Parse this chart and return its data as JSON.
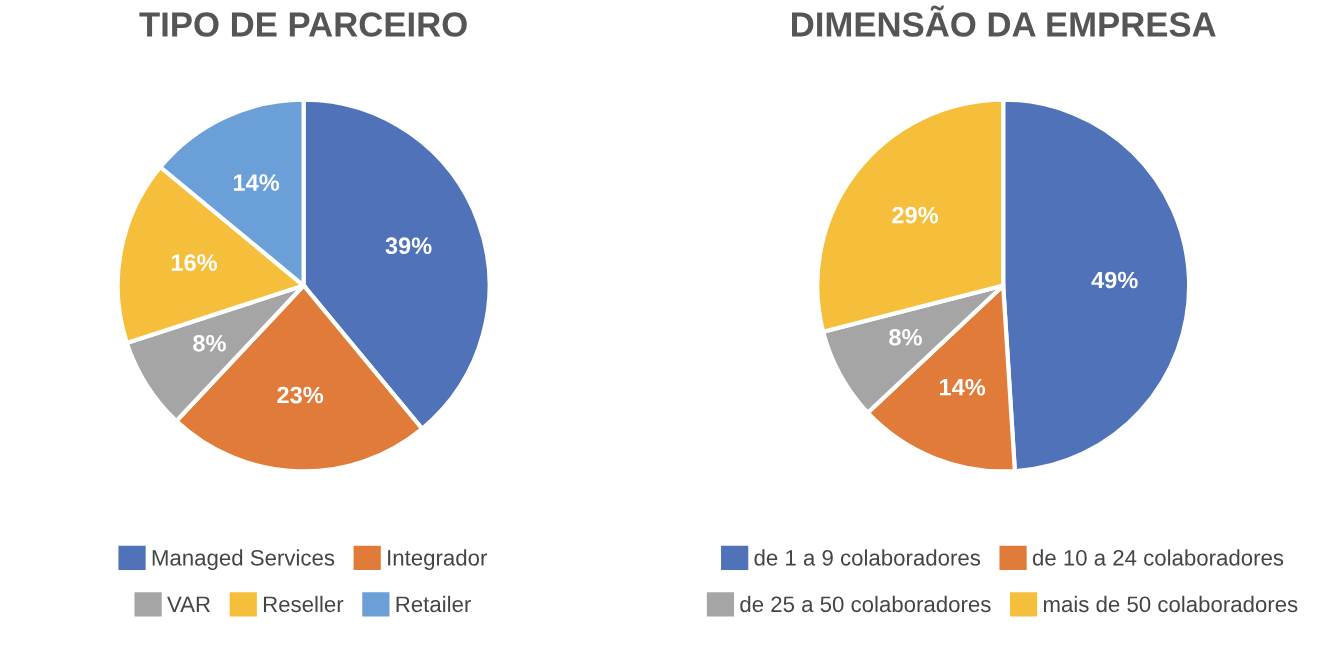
{
  "chart_data": [
    {
      "type": "pie",
      "title": "TIPO DE PARCEIRO",
      "categories": [
        "Managed Services",
        "Integrador",
        "VAR",
        "Reseller",
        "Retailer"
      ],
      "values": [
        39,
        23,
        8,
        16,
        14
      ],
      "colors": [
        "#4f72b8",
        "#e07b39",
        "#a5a5a5",
        "#f5bf3c",
        "#6a9fd8"
      ],
      "value_labels": [
        "39%",
        "23%",
        "8%",
        "16%",
        "14%"
      ],
      "legend": "bottom"
    },
    {
      "type": "pie",
      "title": "DIMENSÃO DA EMPRESA",
      "categories": [
        "de 1 a 9 colaboradores",
        "de 10 a 24 colaboradores",
        "de 25 a 50 colaboradores",
        "mais de 50 colaboradores"
      ],
      "values": [
        49,
        14,
        8,
        29
      ],
      "colors": [
        "#4f72b8",
        "#e07b39",
        "#a5a5a5",
        "#f5bf3c"
      ],
      "value_labels": [
        "49%",
        "14%",
        "8%",
        "29%"
      ],
      "legend": "bottom"
    }
  ]
}
